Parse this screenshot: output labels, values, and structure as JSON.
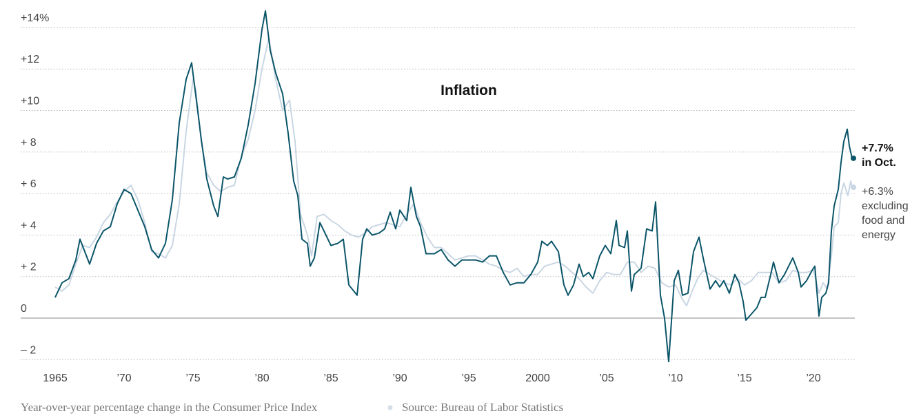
{
  "chart_data": {
    "type": "line",
    "title": "Inflation",
    "caption": "Year-over-year percentage change in the Consumer Price Index",
    "source": "Source: Bureau of Labor Statistics",
    "xlim": [
      1962.5,
      2023
    ],
    "ylim": [
      -2.2,
      15
    ],
    "xticks": [
      1965,
      {
        "value": 1970,
        "label": "’70"
      },
      {
        "value": 1975,
        "label": "’75"
      },
      {
        "value": 1980,
        "label": "’80"
      },
      {
        "value": 1985,
        "label": "’85"
      },
      {
        "value": 1990,
        "label": "’90"
      },
      {
        "value": 1995,
        "label": "’95"
      },
      2000,
      {
        "value": 2005,
        "label": "’05"
      },
      {
        "value": 2010,
        "label": "’10"
      },
      {
        "value": 2015,
        "label": "’15"
      },
      {
        "value": 2020,
        "label": "’20"
      }
    ],
    "yticks": [
      {
        "value": 14,
        "label": "+14%"
      },
      {
        "value": 12,
        "label": "+12"
      },
      {
        "value": 10,
        "label": "+10"
      },
      {
        "value": 8,
        "label": "+ 8"
      },
      {
        "value": 6,
        "label": "+ 6"
      },
      {
        "value": 4,
        "label": "+ 4"
      },
      {
        "value": 2,
        "label": "+ 2"
      },
      0,
      {
        "value": -2,
        "label": "– 2"
      }
    ],
    "grid": true,
    "series": [
      {
        "color": "#c9d6e3",
        "end_label": [
          "+6.3%",
          "excluding",
          "food and",
          "energy"
        ],
        "x": [
          1965.0,
          1965.5,
          1966.0,
          1966.5,
          1967.0,
          1967.5,
          1968.0,
          1968.5,
          1969.0,
          1969.5,
          1970.0,
          1970.5,
          1971.0,
          1971.5,
          1972.0,
          1972.5,
          1973.0,
          1973.5,
          1974.0,
          1974.5,
          1975.0,
          1975.2,
          1975.6,
          1976.0,
          1976.5,
          1977.0,
          1977.5,
          1978.0,
          1978.5,
          1979.0,
          1979.5,
          1980.0,
          1980.5,
          1981.0,
          1981.5,
          1982.0,
          1982.4,
          1982.8,
          1983.3,
          1983.6,
          1984.0,
          1984.5,
          1985.0,
          1985.5,
          1986.0,
          1986.5,
          1987.0,
          1987.5,
          1988.0,
          1988.5,
          1989.0,
          1989.5,
          1990.0,
          1990.5,
          1991.0,
          1991.5,
          1992.0,
          1992.5,
          1993.0,
          1993.5,
          1994.0,
          1994.5,
          1995.0,
          1995.5,
          1996.0,
          1996.5,
          1997.0,
          1997.5,
          1998.0,
          1998.5,
          1999.0,
          1999.5,
          2000.0,
          2000.5,
          2001.0,
          2001.5,
          2002.0,
          2002.5,
          2003.0,
          2003.5,
          2004.0,
          2004.5,
          2005.0,
          2005.5,
          2006.0,
          2006.5,
          2007.0,
          2007.5,
          2008.0,
          2008.5,
          2009.0,
          2009.5,
          2010.0,
          2010.5,
          2010.8,
          2011.2,
          2011.6,
          2012.0,
          2012.5,
          2013.0,
          2013.5,
          2014.0,
          2014.5,
          2015.0,
          2015.5,
          2016.0,
          2016.5,
          2017.0,
          2017.5,
          2018.0,
          2018.5,
          2019.0,
          2019.5,
          2020.0,
          2020.4,
          2020.7,
          2021.0,
          2021.3,
          2021.5,
          2021.8,
          2022.0,
          2022.2,
          2022.5,
          2022.7,
          2022.8
        ],
        "values": [
          1.5,
          1.3,
          1.6,
          2.6,
          3.5,
          3.4,
          3.9,
          4.6,
          5.0,
          5.6,
          6.1,
          6.4,
          5.7,
          4.6,
          3.2,
          3.1,
          2.9,
          3.5,
          5.5,
          9.0,
          11.5,
          11.0,
          8.5,
          7.0,
          6.4,
          6.1,
          6.3,
          6.4,
          7.8,
          8.6,
          10.0,
          12.0,
          13.5,
          11.5,
          10.0,
          10.5,
          8.5,
          5.0,
          4.0,
          3.0,
          4.9,
          5.0,
          4.7,
          4.5,
          4.2,
          4.0,
          3.9,
          4.1,
          4.4,
          4.5,
          4.6,
          4.5,
          4.4,
          5.0,
          5.5,
          4.6,
          3.9,
          3.4,
          3.4,
          3.1,
          2.8,
          2.9,
          3.0,
          3.0,
          2.8,
          2.6,
          2.5,
          2.3,
          2.2,
          2.4,
          2.0,
          2.1,
          2.1,
          2.5,
          2.6,
          2.7,
          2.5,
          2.2,
          1.9,
          1.5,
          1.2,
          1.8,
          2.2,
          2.1,
          2.1,
          2.7,
          2.7,
          2.2,
          2.5,
          2.4,
          1.7,
          1.5,
          1.6,
          0.9,
          0.6,
          1.3,
          1.9,
          2.3,
          2.1,
          1.9,
          1.7,
          1.6,
          1.9,
          1.6,
          1.8,
          2.2,
          2.2,
          2.2,
          1.7,
          1.8,
          2.3,
          2.2,
          2.2,
          2.3,
          1.2,
          1.7,
          1.4,
          3.0,
          4.4,
          4.6,
          6.0,
          6.5,
          5.9,
          6.6,
          6.3
        ]
      },
      {
        "color": "#0b5569",
        "end_label": [
          "+7.7%",
          "in Oct."
        ],
        "x": [
          1965.0,
          1965.5,
          1966.0,
          1966.5,
          1966.8,
          1967.5,
          1968.0,
          1968.5,
          1969.0,
          1969.5,
          1970.0,
          1970.5,
          1971.0,
          1971.5,
          1972.0,
          1972.5,
          1973.0,
          1973.5,
          1974.0,
          1974.5,
          1974.9,
          1975.3,
          1975.6,
          1976.0,
          1976.5,
          1976.8,
          1977.2,
          1977.5,
          1978.0,
          1978.5,
          1979.0,
          1979.5,
          1980.0,
          1980.25,
          1980.6,
          1981.0,
          1981.5,
          1981.9,
          1982.3,
          1982.6,
          1982.9,
          1983.3,
          1983.5,
          1983.8,
          1984.2,
          1984.5,
          1985.0,
          1985.5,
          1985.9,
          1986.3,
          1986.9,
          1987.3,
          1987.6,
          1988.0,
          1988.5,
          1988.9,
          1989.3,
          1989.7,
          1990.0,
          1990.5,
          1990.8,
          1991.2,
          1991.5,
          1991.9,
          1992.5,
          1993.0,
          1993.5,
          1994.0,
          1994.5,
          1995.0,
          1995.5,
          1996.0,
          1996.5,
          1997.0,
          1997.5,
          1998.0,
          1998.5,
          1999.0,
          1999.5,
          2000.0,
          2000.3,
          2000.7,
          2001.0,
          2001.5,
          2001.9,
          2002.2,
          2002.6,
          2003.0,
          2003.3,
          2003.7,
          2004.0,
          2004.5,
          2004.9,
          2005.3,
          2005.7,
          2005.9,
          2006.3,
          2006.5,
          2006.8,
          2007.0,
          2007.5,
          2007.9,
          2008.3,
          2008.55,
          2008.9,
          2009.2,
          2009.5,
          2009.9,
          2010.2,
          2010.5,
          2010.9,
          2011.3,
          2011.7,
          2012.0,
          2012.5,
          2012.9,
          2013.2,
          2013.5,
          2013.9,
          2014.3,
          2014.6,
          2014.9,
          2015.1,
          2015.5,
          2015.9,
          2016.2,
          2016.5,
          2016.9,
          2017.1,
          2017.5,
          2017.9,
          2018.5,
          2018.9,
          2019.1,
          2019.5,
          2019.9,
          2020.1,
          2020.4,
          2020.6,
          2020.9,
          2021.1,
          2021.3,
          2021.5,
          2021.8,
          2022.0,
          2022.2,
          2022.45,
          2022.6,
          2022.8
        ],
        "values": [
          1.0,
          1.7,
          1.9,
          2.8,
          3.8,
          2.6,
          3.6,
          4.2,
          4.4,
          5.5,
          6.2,
          6.0,
          5.2,
          4.4,
          3.3,
          2.9,
          3.6,
          5.7,
          9.4,
          11.5,
          12.3,
          10.2,
          8.6,
          6.7,
          5.4,
          4.9,
          6.8,
          6.7,
          6.8,
          7.7,
          9.3,
          11.3,
          13.9,
          14.8,
          12.9,
          11.8,
          10.8,
          8.9,
          6.6,
          5.9,
          3.8,
          3.6,
          2.5,
          2.9,
          4.6,
          4.2,
          3.5,
          3.6,
          3.8,
          1.6,
          1.1,
          3.8,
          4.3,
          4.0,
          4.1,
          4.3,
          5.1,
          4.3,
          5.2,
          4.7,
          6.3,
          4.9,
          4.4,
          3.1,
          3.1,
          3.3,
          2.8,
          2.5,
          2.8,
          2.8,
          2.8,
          2.7,
          3.0,
          3.0,
          2.2,
          1.6,
          1.7,
          1.7,
          2.1,
          2.7,
          3.7,
          3.5,
          3.7,
          3.2,
          1.6,
          1.1,
          1.6,
          2.6,
          2.0,
          2.2,
          1.9,
          3.0,
          3.5,
          3.1,
          4.7,
          3.5,
          3.4,
          4.2,
          1.3,
          2.1,
          2.4,
          4.3,
          4.2,
          5.6,
          1.1,
          0,
          -2.1,
          1.8,
          2.3,
          1.1,
          1.2,
          3.2,
          3.9,
          2.9,
          1.4,
          1.8,
          1.5,
          1.8,
          1.2,
          2.1,
          1.7,
          0.8,
          -0.1,
          0.2,
          0.5,
          1.0,
          1.0,
          2.1,
          2.7,
          1.7,
          2.1,
          2.9,
          2.2,
          1.5,
          1.8,
          2.3,
          2.5,
          0.1,
          1.0,
          1.2,
          1.7,
          4.2,
          5.4,
          6.2,
          7.5,
          8.5,
          9.1,
          8.3,
          7.7
        ]
      }
    ]
  }
}
